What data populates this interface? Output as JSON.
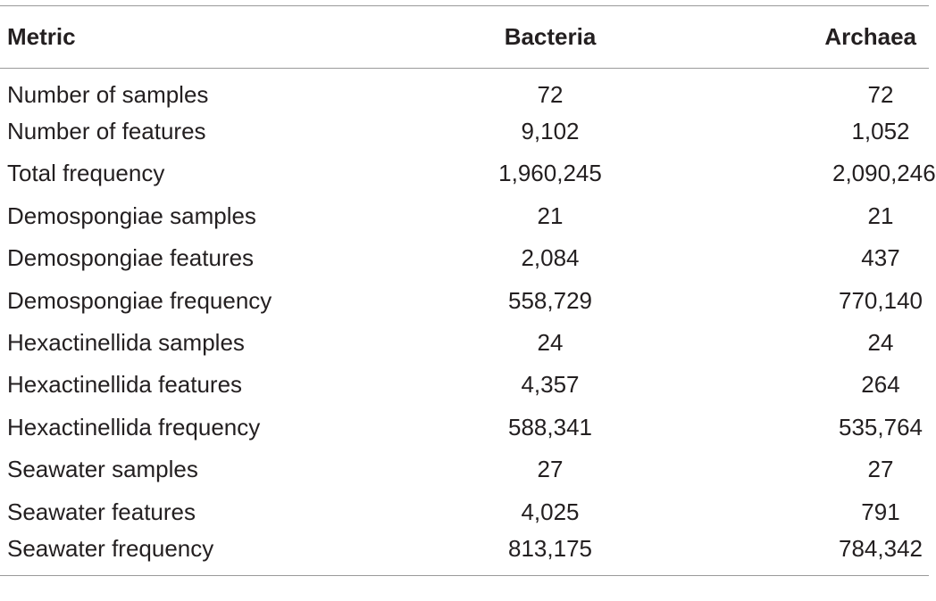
{
  "table": {
    "columns": [
      "Metric",
      "Bacteria",
      "Archaea"
    ],
    "rows": [
      [
        "Number of samples",
        "72",
        "72"
      ],
      [
        "Number of features",
        "9,102",
        "1,052"
      ],
      [
        "Total frequency",
        "1,960,245",
        "2,090,246"
      ],
      [
        "Demospongiae samples",
        "21",
        "21"
      ],
      [
        "Demospongiae features",
        "2,084",
        "437"
      ],
      [
        "Demospongiae frequency",
        "558,729",
        "770,140"
      ],
      [
        "Hexactinellida samples",
        "24",
        "24"
      ],
      [
        "Hexactinellida features",
        "4,357",
        "264"
      ],
      [
        "Hexactinellida frequency",
        "588,341",
        "535,764"
      ],
      [
        "Seawater samples",
        "27",
        "27"
      ],
      [
        "Seawater features",
        "4,025",
        "791"
      ],
      [
        "Seawater frequency",
        "813,175",
        "784,342"
      ]
    ]
  }
}
